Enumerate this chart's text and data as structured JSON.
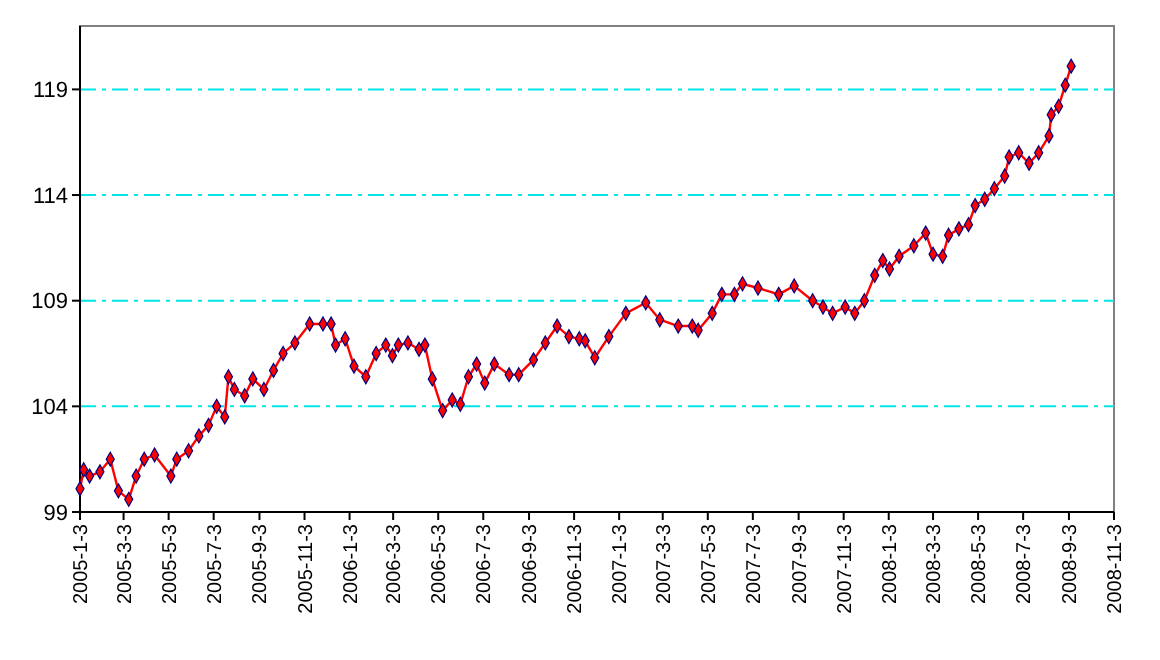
{
  "chart_data": {
    "type": "line",
    "x": [
      "2005-01-03",
      "2005-01-08",
      "2005-01-16",
      "2005-01-30",
      "2005-02-13",
      "2005-02-24",
      "2005-03-10",
      "2005-03-20",
      "2005-03-31",
      "2005-04-14",
      "2005-05-06",
      "2005-05-14",
      "2005-05-30",
      "2005-06-13",
      "2005-06-26",
      "2005-07-07",
      "2005-07-18",
      "2005-07-23",
      "2005-07-31",
      "2005-08-14",
      "2005-08-25",
      "2005-09-09",
      "2005-09-22",
      "2005-10-05",
      "2005-10-21",
      "2005-11-10",
      "2005-11-28",
      "2005-12-09",
      "2005-12-15",
      "2005-12-28",
      "2006-01-09",
      "2006-01-25",
      "2006-02-08",
      "2006-02-21",
      "2006-03-02",
      "2006-03-10",
      "2006-03-23",
      "2006-04-07",
      "2006-04-15",
      "2006-04-25",
      "2006-05-09",
      "2006-05-22",
      "2006-06-02",
      "2006-06-13",
      "2006-06-24",
      "2006-07-05",
      "2006-07-18",
      "2006-08-07",
      "2006-08-20",
      "2006-09-09",
      "2006-09-25",
      "2006-10-11",
      "2006-10-27",
      "2006-11-10",
      "2006-11-18",
      "2006-12-01",
      "2006-12-20",
      "2007-01-12",
      "2007-02-08",
      "2007-02-27",
      "2007-03-24",
      "2007-04-12",
      "2007-04-20",
      "2007-05-09",
      "2007-05-22",
      "2007-06-08",
      "2007-06-19",
      "2007-07-10",
      "2007-08-07",
      "2007-08-28",
      "2007-09-22",
      "2007-10-06",
      "2007-10-19",
      "2007-11-05",
      "2007-11-18",
      "2007-12-01",
      "2007-12-15",
      "2007-12-26",
      "2008-01-04",
      "2008-01-17",
      "2008-02-06",
      "2008-02-22",
      "2008-03-03",
      "2008-03-16",
      "2008-03-24",
      "2008-04-07",
      "2008-04-20",
      "2008-04-29",
      "2008-05-12",
      "2008-05-25",
      "2008-06-08",
      "2008-06-14",
      "2008-06-27",
      "2008-07-11",
      "2008-07-24",
      "2008-08-07",
      "2008-08-10",
      "2008-08-20",
      "2008-08-29",
      "2008-09-06"
    ],
    "series": [
      {
        "color": "#ff0000",
        "values": [
          100.1,
          101.0,
          100.7,
          100.9,
          101.5,
          100.0,
          99.6,
          100.7,
          101.5,
          101.7,
          100.7,
          101.5,
          101.9,
          102.6,
          103.1,
          104.0,
          103.5,
          105.4,
          104.8,
          104.5,
          105.3,
          104.8,
          105.7,
          106.5,
          107.0,
          107.9,
          107.9,
          107.9,
          106.9,
          107.2,
          105.9,
          105.4,
          106.5,
          106.9,
          106.4,
          106.9,
          107.0,
          106.7,
          106.9,
          105.3,
          103.8,
          104.3,
          104.1,
          105.4,
          106.0,
          105.1,
          106.0,
          105.5,
          105.5,
          106.2,
          107.0,
          107.8,
          107.3,
          107.2,
          107.1,
          106.3,
          107.3,
          108.4,
          108.9,
          108.1,
          107.8,
          107.8,
          107.6,
          108.4,
          109.3,
          109.3,
          109.8,
          109.6,
          109.3,
          109.7,
          109.0,
          108.7,
          108.4,
          108.7,
          108.4,
          109.0,
          110.2,
          110.9,
          110.5,
          111.1,
          111.6,
          112.2,
          111.2,
          111.1,
          112.1,
          112.4,
          112.6,
          113.5,
          113.8,
          114.3,
          114.9,
          115.8,
          116.0,
          115.5,
          116.0,
          116.8,
          117.8,
          118.2,
          119.2,
          120.1
        ]
      }
    ],
    "xlim": [
      "2005-01-03",
      "2008-11-03"
    ],
    "xticks": [
      {
        "value": "2005-01-03",
        "label": "2005-1-3"
      },
      {
        "value": "2005-03-03",
        "label": "2005-3-3"
      },
      {
        "value": "2005-05-03",
        "label": "2005-5-3"
      },
      {
        "value": "2005-07-03",
        "label": "2005-7-3"
      },
      {
        "value": "2005-09-03",
        "label": "2005-9-3"
      },
      {
        "value": "2005-11-03",
        "label": "2005-11-3"
      },
      {
        "value": "2006-01-03",
        "label": "2006-1-3"
      },
      {
        "value": "2006-03-03",
        "label": "2006-3-3"
      },
      {
        "value": "2006-05-03",
        "label": "2006-5-3"
      },
      {
        "value": "2006-07-03",
        "label": "2006-7-3"
      },
      {
        "value": "2006-09-03",
        "label": "2006-9-3"
      },
      {
        "value": "2006-11-03",
        "label": "2006-11-3"
      },
      {
        "value": "2007-01-03",
        "label": "2007-1-3"
      },
      {
        "value": "2007-03-03",
        "label": "2007-3-3"
      },
      {
        "value": "2007-05-03",
        "label": "2007-5-3"
      },
      {
        "value": "2007-07-03",
        "label": "2007-7-3"
      },
      {
        "value": "2007-09-03",
        "label": "2007-9-3"
      },
      {
        "value": "2007-11-03",
        "label": "2007-11-3"
      },
      {
        "value": "2008-01-03",
        "label": "2008-1-3"
      },
      {
        "value": "2008-03-03",
        "label": "2008-3-3"
      },
      {
        "value": "2008-05-03",
        "label": "2008-5-3"
      },
      {
        "value": "2008-07-03",
        "label": "2008-7-3"
      },
      {
        "value": "2008-09-03",
        "label": "2008-9-3"
      },
      {
        "value": "2008-11-03",
        "label": "2008-11-3"
      }
    ],
    "ylim": [
      99,
      122
    ],
    "yticks": [
      99,
      104,
      109,
      114,
      119
    ],
    "grid": "y",
    "marker": "diamond",
    "line_style": "solid"
  }
}
